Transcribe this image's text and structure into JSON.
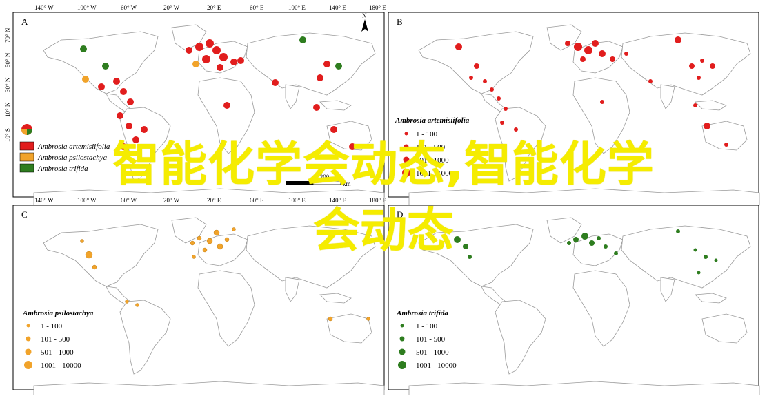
{
  "axes": {
    "longitude_labels": [
      "140° W",
      "100° W",
      "60° W",
      "20° W",
      "20° E",
      "60° E",
      "100° E",
      "140° E",
      "180° E"
    ],
    "latitude_labels": [
      "70° N",
      "50° N",
      "30° N",
      "10° N",
      "10° S",
      "30° S",
      "50° S"
    ]
  },
  "panels": [
    {
      "letter": "A",
      "legend": [
        {
          "label": "Ambrosia artemisiifolia",
          "color": "#e11d1d"
        },
        {
          "label": "Ambrosia psilostachya",
          "color": "#f1a32a"
        },
        {
          "label": "Ambrosia trifida",
          "color": "#2e7d1f"
        }
      ],
      "scale_bar": {
        "value": "1,200",
        "unit": "km"
      },
      "north_arrow": "N"
    },
    {
      "letter": "B",
      "legend_title": "Ambrosia artemisiifolia",
      "legend": [
        "1 - 100",
        "101 - 500",
        "501 - 1000",
        "1001 - 10000"
      ],
      "color": "#e11d1d"
    },
    {
      "letter": "C",
      "legend_title": "Ambrosia psilostachya",
      "legend": [
        "1 - 100",
        "101 - 500",
        "501 - 1000",
        "1001 - 10000"
      ],
      "color": "#f1a32a"
    },
    {
      "letter": "D",
      "legend_title": "Ambrosia trifida",
      "legend": [
        "1 - 100",
        "101 - 500",
        "501 - 1000",
        "1001 - 10000"
      ],
      "color": "#2e7d1f"
    }
  ],
  "overlay_text": {
    "line1": "智能化学会动态,智能化学",
    "line2": "会动态"
  },
  "colors": {
    "overlay": "#f5ec00",
    "land_stroke": "#9a9a9a"
  }
}
